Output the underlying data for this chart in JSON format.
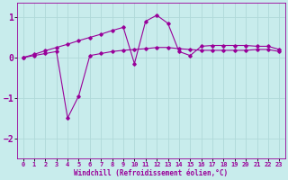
{
  "xlabel": "Windchill (Refroidissement éolien,°C)",
  "background_color": "#c8ecec",
  "grid_color": "#b0d8d8",
  "line_color": "#990099",
  "xlim": [
    -0.5,
    23.5
  ],
  "ylim": [
    -2.5,
    1.35
  ],
  "yticks": [
    -2,
    -1,
    0,
    1
  ],
  "xticks": [
    0,
    1,
    2,
    3,
    4,
    5,
    6,
    7,
    8,
    9,
    10,
    11,
    12,
    13,
    14,
    15,
    16,
    17,
    18,
    19,
    20,
    21,
    22,
    23
  ],
  "series1_x": [
    0,
    1,
    2,
    3,
    4,
    5,
    6,
    7,
    8,
    9,
    10,
    11,
    12,
    13,
    14,
    15,
    16,
    17,
    18,
    19,
    20,
    21,
    22,
    23
  ],
  "series1_y": [
    0.0,
    0.05,
    0.1,
    0.15,
    -1.5,
    -0.95,
    0.05,
    0.1,
    0.15,
    0.18,
    0.2,
    0.22,
    0.25,
    0.25,
    0.22,
    0.2,
    0.18,
    0.18,
    0.18,
    0.18,
    0.18,
    0.2,
    0.2,
    0.15
  ],
  "series2_x": [
    0,
    1,
    2,
    3,
    4,
    5,
    6,
    7,
    8,
    9,
    10,
    11,
    12,
    13,
    14,
    15,
    16,
    17,
    18,
    19,
    20,
    21,
    22,
    23
  ],
  "series2_y": [
    0.0,
    0.08,
    0.17,
    0.25,
    0.33,
    0.42,
    0.5,
    0.58,
    0.67,
    0.75,
    -0.15,
    0.9,
    1.05,
    0.85,
    0.15,
    0.05,
    0.28,
    0.3,
    0.3,
    0.3,
    0.3,
    0.28,
    0.28,
    0.2
  ]
}
